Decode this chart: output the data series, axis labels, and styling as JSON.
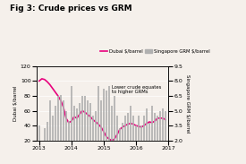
{
  "title": "Fig 3: Crude prices vs GRM",
  "ylabel_left": "Dubai $/barrel",
  "ylabel_right": "Singapore GRM $/barrel",
  "ylim_left": [
    20,
    120
  ],
  "ylim_right": [
    2.0,
    9.5
  ],
  "yticks_left": [
    20,
    40,
    60,
    80,
    100,
    120
  ],
  "yticks_right": [
    2.0,
    3.5,
    5.0,
    6.5,
    8.0,
    9.5
  ],
  "annotation": "Lower crude equates\nto higher GRMs",
  "legend_line_label": "Dubai $/barrel",
  "legend_bar_label": "Singapore GRM $/barrel",
  "background_color": "#f5f0eb",
  "bar_color": "#b0b0b0",
  "line_color": "#e8007d",
  "dubai_prices": [
    100,
    103,
    102,
    99,
    95,
    90,
    85,
    80,
    74,
    65,
    50,
    44,
    46,
    52,
    50,
    55,
    60,
    58,
    55,
    52,
    48,
    45,
    42,
    38,
    32,
    25,
    22,
    20,
    22,
    28,
    35,
    38,
    40,
    42,
    43,
    42,
    40,
    39,
    38,
    40,
    43,
    45,
    44,
    46,
    50,
    50,
    50,
    48
  ],
  "grm_values": [
    3.5,
    1.2,
    3.2,
    3.9,
    6.0,
    4.5,
    5.5,
    6.5,
    6.6,
    6.0,
    5.0,
    4.0,
    7.5,
    5.5,
    5.2,
    5.8,
    6.5,
    6.5,
    6.0,
    5.8,
    4.5,
    5.0,
    7.5,
    6.0,
    7.2,
    7.0,
    7.5,
    5.5,
    6.5,
    4.5,
    3.2,
    3.8,
    4.5,
    4.8,
    5.5,
    4.5,
    3.5,
    4.5,
    3.5,
    4.5,
    5.2,
    3.8,
    5.5,
    4.8,
    4.5,
    5.0,
    5.2,
    5.0
  ],
  "xtick_positions": [
    0,
    12,
    24,
    36,
    48
  ],
  "xtick_labels": [
    "2013",
    "2014",
    "2015",
    "2016",
    "2017"
  ]
}
